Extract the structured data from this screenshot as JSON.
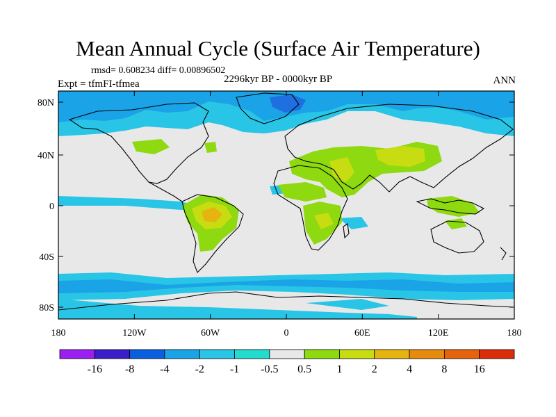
{
  "title": "Mean Annual Cycle (Surface Air Temperature)",
  "stats": "rmsd= 0.608234 diff= 0.00896502",
  "experiment": "Expt = tfmFI-tfmea",
  "period": "2296kyr BP - 0000kyr BP",
  "season": "ANN",
  "axes": {
    "lat_labels": [
      "80N",
      "40N",
      "0",
      "40S",
      "80S"
    ],
    "lon_labels": [
      "180",
      "120W",
      "60W",
      "0",
      "60E",
      "120E",
      "180"
    ]
  },
  "colorbar": {
    "colors": [
      "#9a1ff0",
      "#3a1ec8",
      "#0a5fe0",
      "#1aa3e6",
      "#29c5e6",
      "#22dcd0",
      "#e8e8e8",
      "#8ed90f",
      "#c8dc12",
      "#e6b410",
      "#e68b0e",
      "#e6620c",
      "#dc2d0a"
    ],
    "tick_labels": [
      "-16",
      "-8",
      "-4",
      "-2",
      "-1",
      "-0.5",
      "0.5",
      "1",
      "2",
      "4",
      "8",
      "16"
    ]
  },
  "palette": {
    "strong_cool": "#1f6fe0",
    "cool": "#1aa3e6",
    "light_cool": "#29c5e6",
    "neutral": "#e8e8e8",
    "warm": "#8ed90f",
    "warmer": "#c8dc12",
    "hot": "#e6b410"
  }
}
